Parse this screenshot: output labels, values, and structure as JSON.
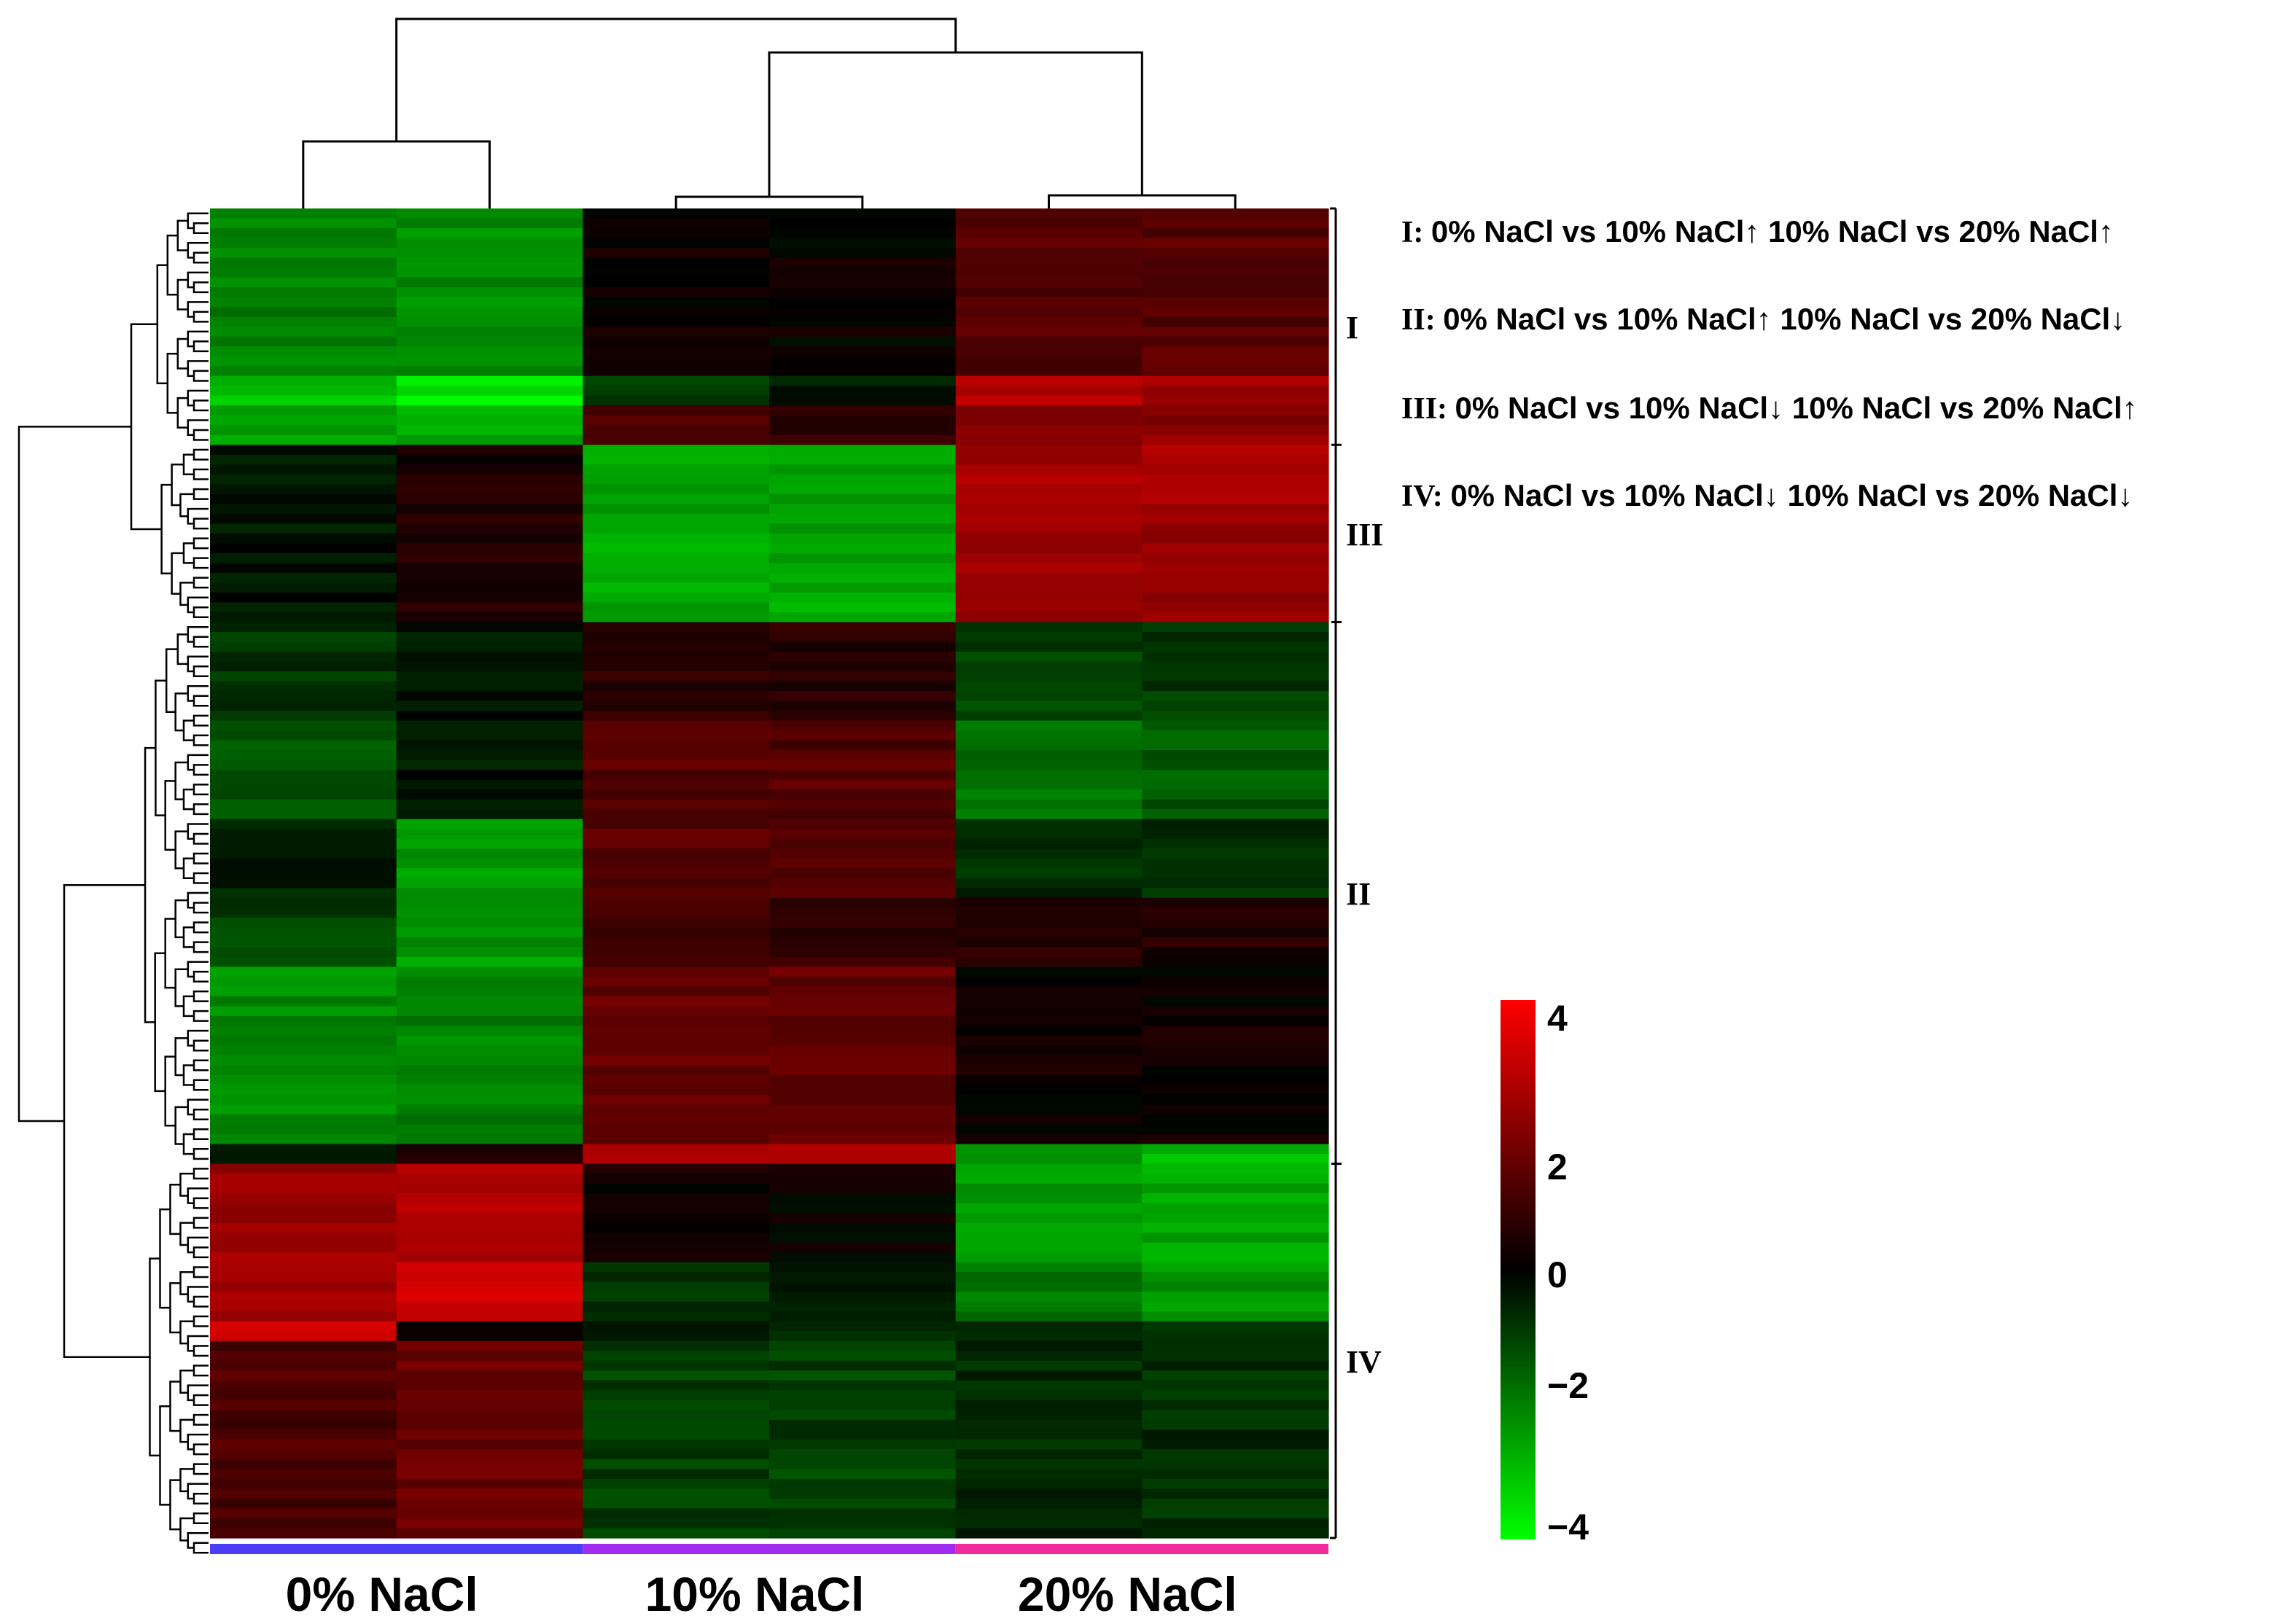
{
  "chart_data": {
    "type": "heatmap",
    "title": "",
    "xlabel": "",
    "ylabel": "",
    "groups": [
      {
        "label": "0% NaCl",
        "color": "#4b3df5"
      },
      {
        "label": "10% NaCl",
        "color": "#a12cf0"
      },
      {
        "label": "20% NaCl",
        "color": "#f02a9c"
      }
    ],
    "samples_per_group": 2,
    "colorscale": {
      "min": -4,
      "max": 4,
      "low_color": "#00ff00",
      "mid_color": "#000000",
      "high_color": "#ff0000",
      "ticks": [
        "4",
        "2",
        "0",
        "−2",
        "−4"
      ]
    },
    "clusters": [
      {
        "label": "I",
        "rows": 24
      },
      {
        "label": "III",
        "rows": 18
      },
      {
        "label": "II",
        "rows": 55
      },
      {
        "label": "IV",
        "rows": 40
      }
    ],
    "legend": [
      {
        "num": "I",
        "text": "0% NaCl vs 10% NaCl↑  10% NaCl vs 20% NaCl↑"
      },
      {
        "num": "II",
        "text": "0% NaCl vs 10% NaCl↑ 10% NaCl vs 20% NaCl↓"
      },
      {
        "num": "III",
        "text": "0% NaCl vs 10% NaCl↓ 10% NaCl vs 20% NaCl↑"
      },
      {
        "num": "IV",
        "text": "0% NaCl vs 10% NaCl↓ 10% NaCl vs 20% NaCl↓"
      }
    ],
    "blocks": [
      {
        "rows": 17,
        "values": [
          -2.0,
          -2.2,
          0.2,
          0.1,
          1.3,
          1.3
        ]
      },
      {
        "rows": 3,
        "values": [
          -3.0,
          -3.6,
          -0.8,
          -0.4,
          2.8,
          2.6
        ]
      },
      {
        "rows": 4,
        "values": [
          -2.4,
          -2.6,
          1.2,
          0.8,
          2.2,
          2.2
        ]
      },
      {
        "rows": 6,
        "values": [
          -0.3,
          0.4,
          -2.6,
          -2.6,
          2.6,
          2.6
        ]
      },
      {
        "rows": 12,
        "values": [
          -0.3,
          0.6,
          -2.6,
          -2.6,
          2.4,
          2.4
        ]
      },
      {
        "rows": 10,
        "values": [
          -0.8,
          -0.4,
          0.7,
          0.6,
          -1.0,
          -0.9
        ]
      },
      {
        "rows": 10,
        "values": [
          -1.2,
          -0.3,
          1.4,
          1.3,
          -1.8,
          -1.4
        ]
      },
      {
        "rows": 8,
        "values": [
          -0.4,
          -2.4,
          1.4,
          1.3,
          -0.6,
          -0.7
        ]
      },
      {
        "rows": 7,
        "values": [
          -1.0,
          -2.4,
          0.9,
          0.8,
          0.6,
          0.5
        ]
      },
      {
        "rows": 18,
        "values": [
          -2.2,
          -2.0,
          1.6,
          1.5,
          0.2,
          0.2
        ]
      },
      {
        "rows": 2,
        "values": [
          -0.3,
          0.3,
          2.6,
          2.6,
          -2.6,
          -2.8
        ]
      },
      {
        "rows": 10,
        "values": [
          2.4,
          2.8,
          0.2,
          0.1,
          -2.4,
          -2.6
        ]
      },
      {
        "rows": 6,
        "values": [
          2.6,
          3.2,
          -0.8,
          -0.6,
          -1.8,
          -2.4
        ]
      },
      {
        "rows": 2,
        "values": [
          3.2,
          0.4,
          -0.6,
          -0.6,
          -0.8,
          -0.8
        ]
      },
      {
        "rows": 20,
        "values": [
          1.2,
          1.6,
          -1.0,
          -1.0,
          -0.6,
          -0.7
        ]
      }
    ]
  }
}
